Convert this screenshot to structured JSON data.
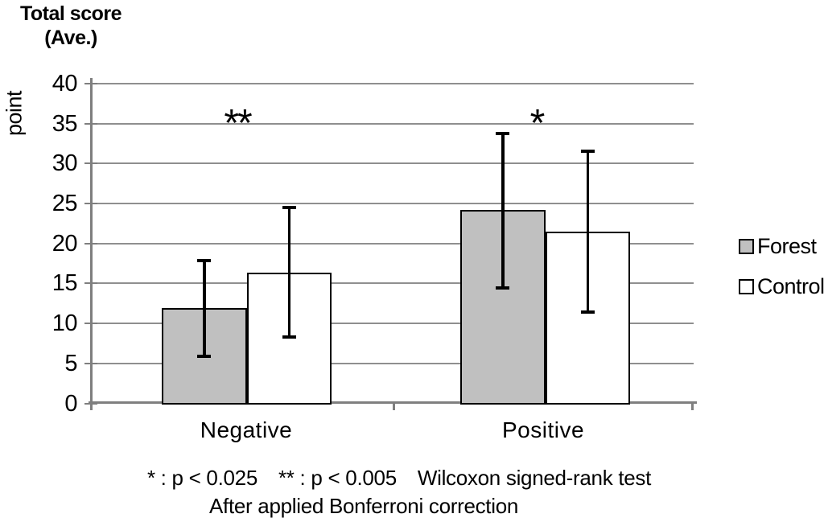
{
  "title": {
    "line1": "Total score",
    "line2": "(Ave.)"
  },
  "footnote": {
    "segments": [
      "* : p < 0.025",
      "** : p < 0.005",
      "Wilcoxon signed-rank test"
    ],
    "line2": "After applied Bonferroni correction"
  },
  "legend": [
    {
      "label": "Forest",
      "fill": "#c0c0c0"
    },
    {
      "label": "Control",
      "fill": "#ffffff"
    }
  ],
  "chart_data": {
    "type": "bar",
    "title": "Total score (Ave.)",
    "ylabel": "point",
    "xlabel": "",
    "ylim": [
      0,
      40
    ],
    "ytick_step": 5,
    "grid": true,
    "legend_position": "right",
    "categories": [
      "Negative",
      "Positive"
    ],
    "series": [
      {
        "name": "Forest",
        "fill": "#c0c0c0",
        "values": [
          11.9,
          24.2
        ],
        "error_low": [
          5.9,
          14.4
        ],
        "error_high": [
          17.9,
          33.8
        ]
      },
      {
        "name": "Control",
        "fill": "#ffffff",
        "values": [
          16.4,
          21.5
        ],
        "error_low": [
          8.3,
          11.4
        ],
        "error_high": [
          24.5,
          31.5
        ]
      }
    ],
    "annotations": [
      {
        "text": "**",
        "category": "Negative",
        "meaning": "p < 0.005"
      },
      {
        "text": "*",
        "category": "Positive",
        "meaning": "p < 0.025"
      }
    ],
    "stats_note": "Wilcoxon signed-rank test, after applied Bonferroni correction"
  }
}
